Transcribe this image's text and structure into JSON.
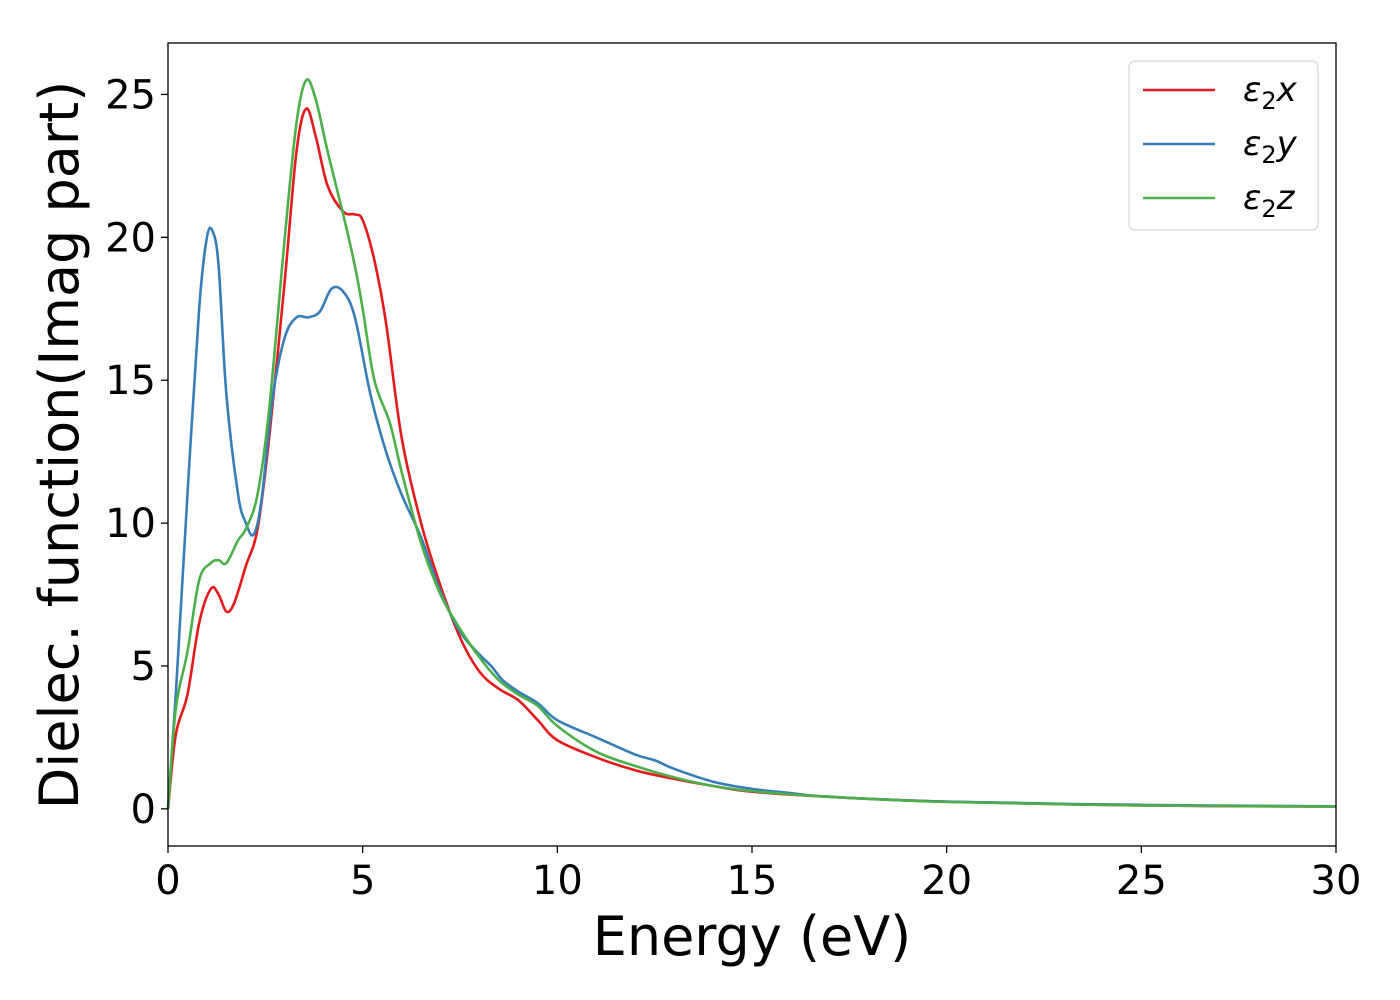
{
  "chart_data": {
    "type": "line",
    "xlabel": "Energy (eV)",
    "ylabel": "Dielec. function(Imag part)",
    "xlim": [
      0,
      30
    ],
    "ylim": [
      -1.3,
      26.8
    ],
    "x_ticks": [
      0,
      5,
      10,
      15,
      20,
      25,
      30
    ],
    "y_ticks": [
      0,
      5,
      10,
      15,
      20,
      25
    ],
    "x_tick_labels": [
      "0",
      "5",
      "10",
      "15",
      "20",
      "25",
      "30"
    ],
    "y_tick_labels": [
      "0",
      "5",
      "10",
      "15",
      "20",
      "25"
    ],
    "grid": false,
    "legend_position": "top-right",
    "series": [
      {
        "name": "ε₂x",
        "legend": {
          "base": "ε",
          "sub": "2",
          "axis": "x"
        },
        "color": "#e41a1c",
        "points": [
          [
            0,
            0
          ],
          [
            0.2,
            2.6
          ],
          [
            0.5,
            4
          ],
          [
            0.8,
            6.5
          ],
          [
            1.1,
            7.7
          ],
          [
            1.3,
            7.5
          ],
          [
            1.5,
            6.9
          ],
          [
            1.7,
            7.2
          ],
          [
            2.0,
            8.5
          ],
          [
            2.3,
            9.8
          ],
          [
            2.6,
            13
          ],
          [
            3.0,
            18.5
          ],
          [
            3.3,
            23
          ],
          [
            3.55,
            24.5
          ],
          [
            3.8,
            23.5
          ],
          [
            4.1,
            21.8
          ],
          [
            4.5,
            20.9
          ],
          [
            4.8,
            20.8
          ],
          [
            5.0,
            20.6
          ],
          [
            5.3,
            19.2
          ],
          [
            5.6,
            17
          ],
          [
            6.0,
            13
          ],
          [
            6.5,
            10
          ],
          [
            7.0,
            7.8
          ],
          [
            7.5,
            6
          ],
          [
            8.0,
            4.8
          ],
          [
            8.5,
            4.2
          ],
          [
            9.0,
            3.8
          ],
          [
            9.5,
            3.1
          ],
          [
            10.0,
            2.4
          ],
          [
            11.0,
            1.8
          ],
          [
            12.0,
            1.35
          ],
          [
            13.0,
            1.05
          ],
          [
            14.0,
            0.8
          ],
          [
            15.0,
            0.6
          ],
          [
            17.0,
            0.42
          ],
          [
            20.0,
            0.25
          ],
          [
            25.0,
            0.12
          ],
          [
            30.0,
            0.08
          ]
        ]
      },
      {
        "name": "ε₂y",
        "legend": {
          "base": "ε",
          "sub": "2",
          "axis": "y"
        },
        "color": "#377eb8",
        "points": [
          [
            0,
            0
          ],
          [
            0.2,
            4
          ],
          [
            0.5,
            11
          ],
          [
            0.8,
            17.5
          ],
          [
            1.0,
            20
          ],
          [
            1.15,
            20.2
          ],
          [
            1.3,
            19
          ],
          [
            1.5,
            14.5
          ],
          [
            1.8,
            11
          ],
          [
            2.0,
            10
          ],
          [
            2.2,
            9.6
          ],
          [
            2.4,
            10.8
          ],
          [
            2.7,
            14.5
          ],
          [
            3.0,
            16.5
          ],
          [
            3.3,
            17.2
          ],
          [
            3.6,
            17.2
          ],
          [
            3.9,
            17.4
          ],
          [
            4.2,
            18.2
          ],
          [
            4.5,
            18.1
          ],
          [
            4.8,
            17.2
          ],
          [
            5.2,
            14.5
          ],
          [
            5.6,
            12.5
          ],
          [
            6.0,
            11
          ],
          [
            6.5,
            9.5
          ],
          [
            7.0,
            7.6
          ],
          [
            7.5,
            6.2
          ],
          [
            8.0,
            5.4
          ],
          [
            8.3,
            5.0
          ],
          [
            8.6,
            4.5
          ],
          [
            9.0,
            4.1
          ],
          [
            9.5,
            3.7
          ],
          [
            10.0,
            3.1
          ],
          [
            11.0,
            2.5
          ],
          [
            12.0,
            1.9
          ],
          [
            12.5,
            1.7
          ],
          [
            13.0,
            1.4
          ],
          [
            14.0,
            0.95
          ],
          [
            15.0,
            0.7
          ],
          [
            16.0,
            0.55
          ],
          [
            17.0,
            0.42
          ],
          [
            20.0,
            0.25
          ],
          [
            25.0,
            0.14
          ],
          [
            30.0,
            0.09
          ]
        ]
      },
      {
        "name": "ε₂z",
        "legend": {
          "base": "ε",
          "sub": "2",
          "axis": "z"
        },
        "color": "#4daf4a",
        "points": [
          [
            0,
            0
          ],
          [
            0.2,
            3.5
          ],
          [
            0.5,
            5.5
          ],
          [
            0.8,
            8
          ],
          [
            1.1,
            8.6
          ],
          [
            1.3,
            8.7
          ],
          [
            1.5,
            8.6
          ],
          [
            1.8,
            9.4
          ],
          [
            2.0,
            9.8
          ],
          [
            2.3,
            11
          ],
          [
            2.6,
            14
          ],
          [
            3.0,
            20
          ],
          [
            3.3,
            24
          ],
          [
            3.55,
            25.5
          ],
          [
            3.8,
            24.8
          ],
          [
            4.1,
            23
          ],
          [
            4.5,
            20.8
          ],
          [
            4.8,
            19
          ],
          [
            5.0,
            17.5
          ],
          [
            5.3,
            15
          ],
          [
            5.7,
            13.5
          ],
          [
            6.0,
            11.8
          ],
          [
            6.5,
            9.3
          ],
          [
            7.0,
            7.5
          ],
          [
            7.5,
            6.3
          ],
          [
            8.0,
            5.3
          ],
          [
            8.5,
            4.5
          ],
          [
            9.0,
            4.0
          ],
          [
            9.5,
            3.6
          ],
          [
            10.0,
            2.9
          ],
          [
            11.0,
            2.0
          ],
          [
            12.0,
            1.5
          ],
          [
            13.0,
            1.1
          ],
          [
            14.0,
            0.8
          ],
          [
            15.0,
            0.62
          ],
          [
            17.0,
            0.42
          ],
          [
            20.0,
            0.24
          ],
          [
            25.0,
            0.12
          ],
          [
            30.0,
            0.08
          ]
        ]
      }
    ]
  }
}
